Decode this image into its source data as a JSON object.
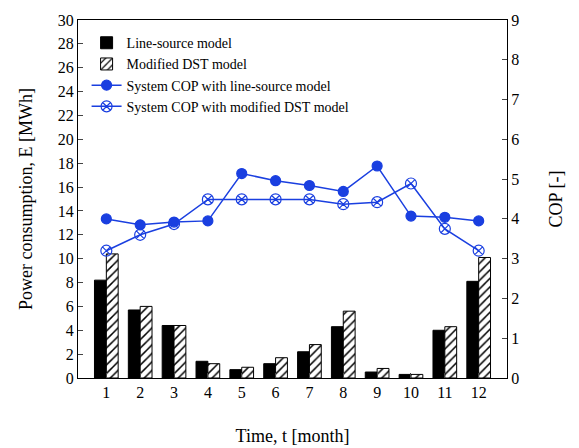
{
  "chart_data": {
    "type": "bar",
    "x_label": "Time, t [month]",
    "y_label": "Power consumption, E [MWh]",
    "y2_label": "COP [-]",
    "categories": [
      "1",
      "2",
      "3",
      "4",
      "5",
      "6",
      "7",
      "8",
      "9",
      "10",
      "11",
      "12"
    ],
    "series": [
      {
        "name": "Line-source model",
        "type": "bar",
        "color": "#000000",
        "marker": "solid",
        "values": [
          8.2,
          5.7,
          4.4,
          1.4,
          0.7,
          1.2,
          2.2,
          4.3,
          0.5,
          0.3,
          4.0,
          8.1
        ]
      },
      {
        "name": "Modified DST model",
        "type": "bar",
        "color": "#000000",
        "marker": "hatched",
        "values": [
          10.4,
          6.0,
          4.4,
          1.2,
          0.9,
          1.7,
          2.8,
          5.6,
          0.8,
          0.3,
          4.3,
          10.1
        ]
      },
      {
        "name": "System COP with line-source model",
        "type": "line",
        "axis": "y2",
        "color": "#1a3fe0",
        "marker": "circle",
        "values": [
          4.0,
          3.85,
          3.92,
          3.95,
          5.14,
          4.96,
          4.84,
          4.69,
          5.33,
          4.07,
          4.04,
          3.95
        ]
      },
      {
        "name": "System COP with modified DST model",
        "type": "line",
        "axis": "y2",
        "color": "#1a3fe0",
        "marker": "circle-x-open",
        "values": [
          3.2,
          3.6,
          3.87,
          4.49,
          4.49,
          4.49,
          4.49,
          4.37,
          4.42,
          4.89,
          3.75,
          3.2
        ]
      }
    ],
    "ylim": [
      0,
      30
    ],
    "yticks": [
      0,
      2,
      4,
      6,
      8,
      10,
      12,
      14,
      16,
      18,
      20,
      22,
      24,
      26,
      28,
      30
    ],
    "y2lim": [
      0,
      9
    ],
    "y2ticks": [
      0,
      1,
      2,
      3,
      4,
      5,
      6,
      7,
      8,
      9
    ],
    "legend": "upper left",
    "grid": false
  }
}
